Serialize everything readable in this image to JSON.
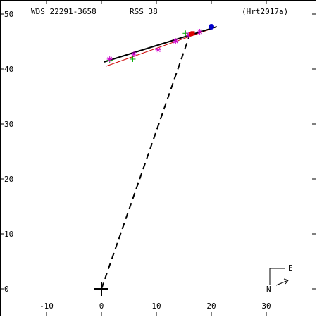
{
  "header": {
    "left": "WDS 22291-3658",
    "center": "RSS  38",
    "right": "(Hrt2017a)"
  },
  "compass": {
    "east": "E",
    "north": "N"
  },
  "colors": {
    "axes": "#000000",
    "fit_line": "#000000",
    "alt_line": "#cc0000",
    "green_marker": "#00aa00",
    "magenta_marker": "#cc00cc",
    "red_marker": "#dd0000",
    "blue_marker": "#0000cc"
  },
  "chart_data": {
    "type": "scatter",
    "title": "",
    "xlabel": "",
    "ylabel": "",
    "xlim": [
      -18,
      39
    ],
    "ylim": [
      -5,
      50
    ],
    "x_ticks": [
      -10,
      0,
      10,
      20,
      30
    ],
    "y_ticks": [
      0,
      10,
      20,
      30,
      40,
      50
    ],
    "grid": false,
    "primary_star": [
      0,
      0
    ],
    "projection_line": {
      "from": [
        0,
        0
      ],
      "to": [
        16,
        46
      ]
    },
    "fit_line": {
      "from": [
        0.5,
        41.3
      ],
      "to": [
        21,
        47.7
      ]
    },
    "alt_line": {
      "from": [
        0.8,
        40.5
      ],
      "to": [
        20.5,
        47.5
      ]
    },
    "series": [
      {
        "marker": "plus",
        "color": "#00aa00",
        "points": [
          [
            1.5,
            41.6
          ],
          [
            5.7,
            41.8
          ],
          [
            15.3,
            46.5
          ]
        ]
      },
      {
        "marker": "star",
        "color": "#cc00cc",
        "points": [
          [
            1.5,
            41.8
          ],
          [
            5.9,
            42.7
          ],
          [
            10.3,
            43.5
          ],
          [
            13.5,
            45.1
          ],
          [
            15.8,
            46.2
          ],
          [
            17.9,
            46.8
          ]
        ]
      },
      {
        "marker": "square",
        "color": "#dd0000",
        "points": [
          [
            16.3,
            46.4
          ],
          [
            16.6,
            46.5
          ]
        ]
      },
      {
        "marker": "circle",
        "color": "#0000cc",
        "points": [
          [
            20.0,
            47.7
          ]
        ]
      }
    ]
  }
}
